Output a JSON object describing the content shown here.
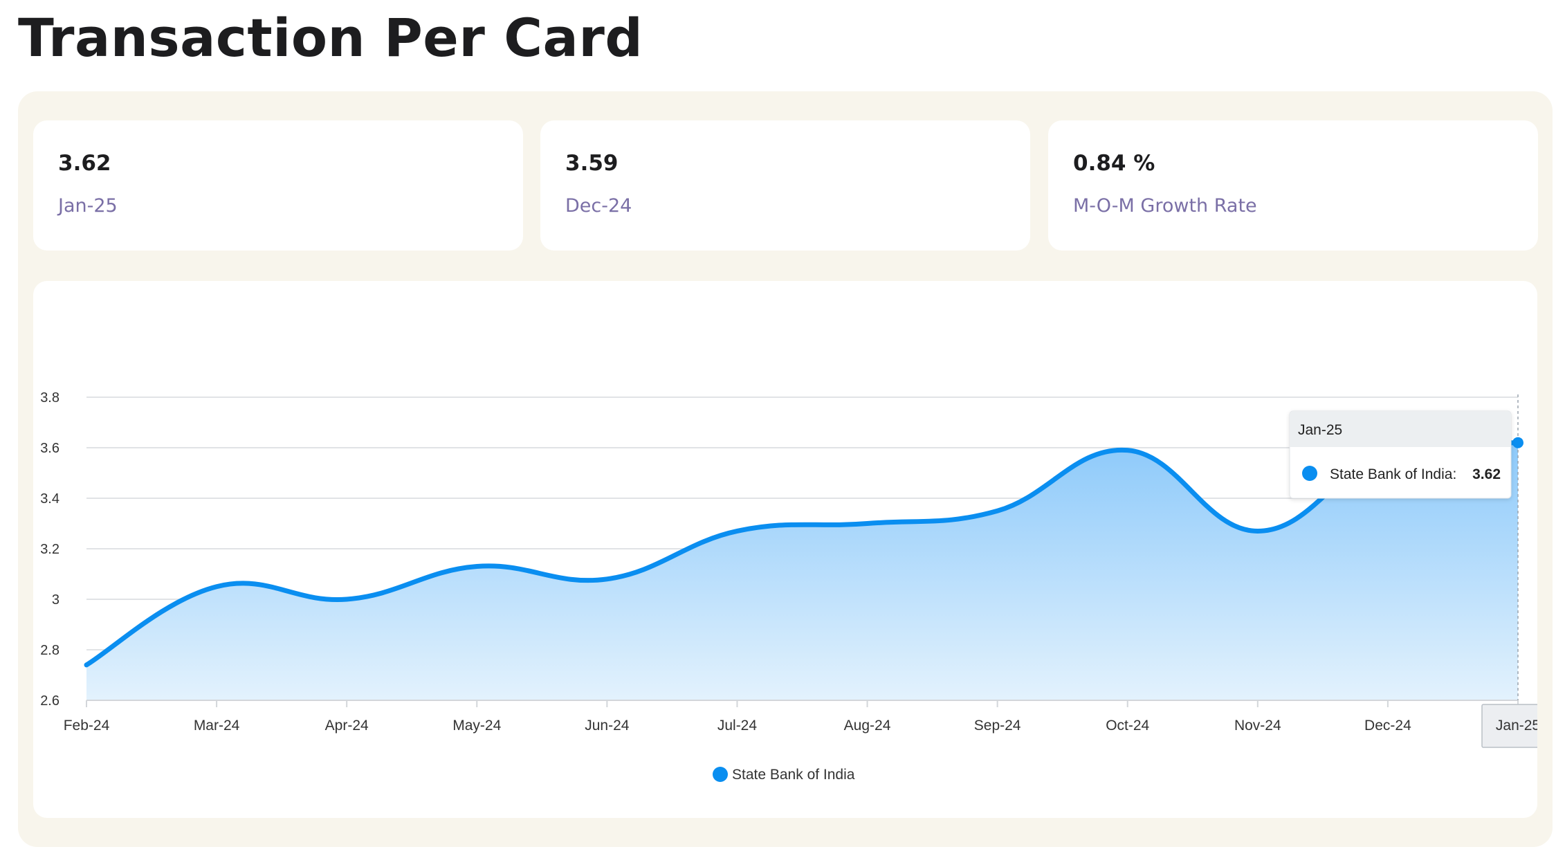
{
  "page": {
    "title": "Transaction Per Card"
  },
  "stats": [
    {
      "value": "3.62",
      "label": "Jan-25"
    },
    {
      "value": "3.59",
      "label": "Dec-24"
    },
    {
      "value": "0.84 %",
      "label": "M-O-M Growth Rate"
    }
  ],
  "colors": {
    "series": "#0a8ef0",
    "panel_bg": "#f8f5ec",
    "label_purple": "#7a6fa6"
  },
  "chart_data": {
    "type": "area",
    "title": "",
    "xlabel": "",
    "ylabel": "",
    "categories": [
      "Feb-24",
      "Mar-24",
      "Apr-24",
      "May-24",
      "Jun-24",
      "Jul-24",
      "Aug-24",
      "Sep-24",
      "Oct-24",
      "Nov-24",
      "Dec-24",
      "Jan-25"
    ],
    "series": [
      {
        "name": "State Bank of India",
        "values": [
          2.74,
          3.05,
          3.0,
          3.13,
          3.08,
          3.27,
          3.3,
          3.35,
          3.59,
          3.27,
          3.59,
          3.62
        ]
      }
    ],
    "ylim": [
      2.6,
      3.8
    ],
    "yticks": [
      2.6,
      2.8,
      3.0,
      3.2,
      3.4,
      3.6,
      3.8
    ],
    "ytick_labels": [
      "2.6",
      "2.8",
      "3",
      "3.2",
      "3.4",
      "3.6",
      "3.8"
    ],
    "grid": true,
    "legend": "bottom-center",
    "tooltip": {
      "title": "Jan-25",
      "series": "State Bank of India:",
      "value": "3.62"
    }
  }
}
